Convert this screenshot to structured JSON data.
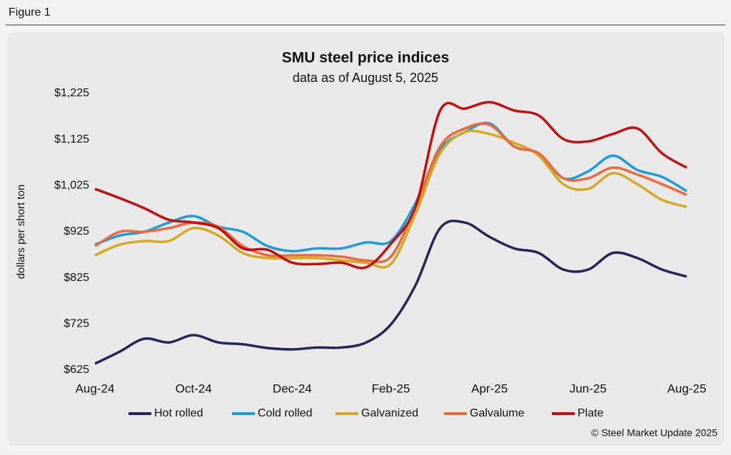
{
  "chart_data": {
    "type": "line",
    "figure_label": "Figure 1",
    "title": "SMU steel price indices",
    "subtitle": "data as of August 5, 2025",
    "y_label": "dollars per short ton",
    "source": "© Steel Market Update 2025",
    "categories": [
      "Aug-24",
      null,
      null,
      null,
      "Oct-24",
      null,
      null,
      null,
      "Dec-24",
      null,
      null,
      null,
      "Feb-25",
      null,
      null,
      null,
      "Apr-25",
      null,
      null,
      null,
      "Jun-25",
      null,
      null,
      null,
      "Aug-25"
    ],
    "ylim": [
      625,
      1225
    ],
    "yticks": [
      {
        "value": 625,
        "label": "$625"
      },
      {
        "value": 725,
        "label": "$725"
      },
      {
        "value": 825,
        "label": "$825"
      },
      {
        "value": 925,
        "label": "$925"
      },
      {
        "value": 1025,
        "label": "$1,025"
      },
      {
        "value": 1125,
        "label": "$1,125"
      },
      {
        "value": 1225,
        "label": "$1,225"
      }
    ],
    "grid": false,
    "legend": "bottom",
    "series": [
      {
        "name": "Hot rolled",
        "color": "#262454",
        "values": [
          639,
          665,
          693,
          685,
          701,
          685,
          681,
          673,
          670,
          674,
          674,
          685,
          724,
          809,
          933,
          945,
          914,
          889,
          879,
          843,
          843,
          879,
          868,
          843,
          828
        ]
      },
      {
        "name": "Cold rolled",
        "color": "#1a9cd8",
        "values": [
          897,
          917,
          925,
          945,
          959,
          936,
          925,
          894,
          883,
          889,
          889,
          902,
          905,
          987,
          1103,
          1141,
          1160,
          1110,
          1095,
          1041,
          1056,
          1090,
          1059,
          1044,
          1013
        ]
      },
      {
        "name": "Galvanized",
        "color": "#d4a920",
        "values": [
          874,
          897,
          905,
          905,
          933,
          917,
          879,
          868,
          868,
          868,
          863,
          858,
          855,
          964,
          1095,
          1141,
          1137,
          1118,
          1090,
          1028,
          1018,
          1052,
          1028,
          994,
          979
        ]
      },
      {
        "name": "Galvalume",
        "color": "#ec6a3c",
        "values": [
          894,
          925,
          925,
          933,
          945,
          936,
          894,
          874,
          874,
          874,
          871,
          863,
          871,
          979,
          1110,
          1149,
          1157,
          1110,
          1095,
          1041,
          1041,
          1064,
          1049,
          1028,
          1005
        ]
      },
      {
        "name": "Plate",
        "color": "#c01010",
        "values": [
          1018,
          998,
          976,
          951,
          945,
          933,
          889,
          886,
          858,
          855,
          858,
          848,
          899,
          979,
          1188,
          1192,
          1206,
          1188,
          1177,
          1126,
          1121,
          1137,
          1149,
          1095,
          1064
        ]
      }
    ]
  }
}
